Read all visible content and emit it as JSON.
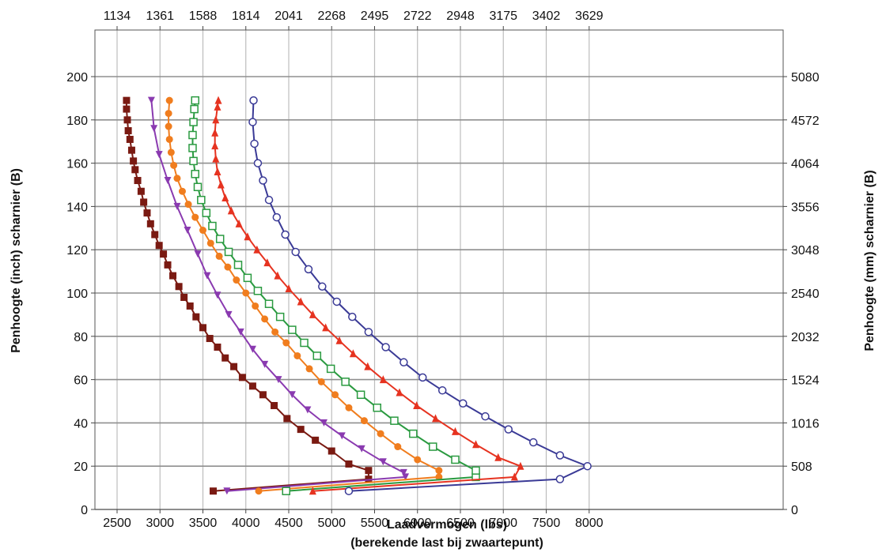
{
  "chart_data": {
    "type": "line",
    "title": "",
    "xlabel": "Laadvermogen (lbs)",
    "xlabel_sub": "(berekende last bij zwaartepunt)",
    "ylabel": "Penhoogte (inch) scharnier (B)",
    "ylabel_right": "Penhoogte (mm) scharnier (B)",
    "xlim": [
      2500,
      8250
    ],
    "ylim": [
      0,
      210
    ],
    "grid": true,
    "legend": "none",
    "x_ticks": [
      2500,
      3000,
      3500,
      4000,
      4500,
      5000,
      5500,
      6000,
      6500,
      7000,
      7500,
      8000
    ],
    "y_ticks": [
      0,
      20,
      40,
      60,
      80,
      100,
      120,
      140,
      160,
      180,
      200
    ],
    "top_ticks": [
      {
        "value": 2500,
        "label": "1134"
      },
      {
        "value": 3000,
        "label": "1361"
      },
      {
        "value": 3500,
        "label": "1588"
      },
      {
        "value": 4000,
        "label": "1814"
      },
      {
        "value": 4500,
        "label": "2041"
      },
      {
        "value": 5000,
        "label": "2268"
      },
      {
        "value": 5500,
        "label": "2495"
      },
      {
        "value": 6000,
        "label": "2722"
      },
      {
        "value": 6500,
        "label": "2948"
      },
      {
        "value": 7000,
        "label": "3175"
      },
      {
        "value": 7500,
        "label": "3402"
      },
      {
        "value": 8000,
        "label": "3629"
      }
    ],
    "right_ticks": [
      {
        "value": 0,
        "label": "0"
      },
      {
        "value": 20,
        "label": "508"
      },
      {
        "value": 40,
        "label": "1016"
      },
      {
        "value": 60,
        "label": "1524"
      },
      {
        "value": 80,
        "label": "2032"
      },
      {
        "value": 100,
        "label": "2540"
      },
      {
        "value": 120,
        "label": "3048"
      },
      {
        "value": 140,
        "label": "3556"
      },
      {
        "value": 160,
        "label": "4064"
      },
      {
        "value": 180,
        "label": "4572"
      },
      {
        "value": 200,
        "label": "5080"
      }
    ],
    "series": [
      {
        "color": "#7a1a12",
        "marker": "square",
        "points": [
          [
            3620,
            8.5
          ],
          [
            5430,
            14
          ],
          [
            5430,
            18
          ],
          [
            5200,
            21
          ],
          [
            5000,
            27
          ],
          [
            4810,
            32
          ],
          [
            4640,
            37
          ],
          [
            4480,
            42
          ],
          [
            4330,
            48
          ],
          [
            4200,
            53
          ],
          [
            4080,
            57
          ],
          [
            3960,
            61
          ],
          [
            3860,
            66
          ],
          [
            3760,
            70
          ],
          [
            3670,
            75
          ],
          [
            3580,
            79
          ],
          [
            3500,
            84
          ],
          [
            3420,
            89
          ],
          [
            3350,
            94
          ],
          [
            3280,
            98
          ],
          [
            3220,
            103
          ],
          [
            3150,
            108
          ],
          [
            3090,
            113
          ],
          [
            3040,
            118
          ],
          [
            2990,
            122
          ],
          [
            2940,
            127
          ],
          [
            2890,
            132
          ],
          [
            2850,
            137
          ],
          [
            2810,
            142
          ],
          [
            2780,
            147
          ],
          [
            2740,
            152
          ],
          [
            2710,
            157
          ],
          [
            2690,
            161
          ],
          [
            2670,
            166
          ],
          [
            2650,
            171
          ],
          [
            2630,
            175
          ],
          [
            2620,
            180
          ],
          [
            2610,
            185
          ],
          [
            2610,
            189
          ]
        ]
      },
      {
        "color": "#8a3ab0",
        "marker": "tri-down",
        "points": [
          [
            3780,
            8.5
          ],
          [
            5860,
            15
          ],
          [
            5840,
            17
          ],
          [
            5600,
            22
          ],
          [
            5350,
            28
          ],
          [
            5120,
            34
          ],
          [
            4910,
            40
          ],
          [
            4720,
            46
          ],
          [
            4540,
            53
          ],
          [
            4380,
            60
          ],
          [
            4220,
            67
          ],
          [
            4080,
            74
          ],
          [
            3940,
            82
          ],
          [
            3800,
            90
          ],
          [
            3670,
            99
          ],
          [
            3550,
            108
          ],
          [
            3440,
            118
          ],
          [
            3320,
            129
          ],
          [
            3200,
            140
          ],
          [
            3090,
            152
          ],
          [
            2990,
            164
          ],
          [
            2930,
            176
          ],
          [
            2900,
            189
          ]
        ]
      },
      {
        "color": "#f07d1e",
        "marker": "circle-filled",
        "points": [
          [
            4150,
            8.5
          ],
          [
            6250,
            15
          ],
          [
            6250,
            18
          ],
          [
            6000,
            23
          ],
          [
            5770,
            29
          ],
          [
            5570,
            35
          ],
          [
            5380,
            41
          ],
          [
            5200,
            47
          ],
          [
            5040,
            53
          ],
          [
            4880,
            59
          ],
          [
            4740,
            65
          ],
          [
            4600,
            71
          ],
          [
            4470,
            77
          ],
          [
            4340,
            82
          ],
          [
            4220,
            88
          ],
          [
            4110,
            94
          ],
          [
            4000,
            100
          ],
          [
            3890,
            106
          ],
          [
            3790,
            112
          ],
          [
            3690,
            117
          ],
          [
            3590,
            123
          ],
          [
            3500,
            129
          ],
          [
            3410,
            135
          ],
          [
            3330,
            141
          ],
          [
            3260,
            147
          ],
          [
            3200,
            153
          ],
          [
            3160,
            159
          ],
          [
            3130,
            165
          ],
          [
            3110,
            171
          ],
          [
            3100,
            177
          ],
          [
            3100,
            183
          ],
          [
            3110,
            189
          ]
        ]
      },
      {
        "color": "#2a9a40",
        "marker": "square-open",
        "points": [
          [
            4470,
            8.5
          ],
          [
            6680,
            15
          ],
          [
            6680,
            18
          ],
          [
            6440,
            23
          ],
          [
            6180,
            29
          ],
          [
            5950,
            35
          ],
          [
            5730,
            41
          ],
          [
            5530,
            47
          ],
          [
            5340,
            53
          ],
          [
            5160,
            59
          ],
          [
            4990,
            65
          ],
          [
            4830,
            71
          ],
          [
            4680,
            77
          ],
          [
            4540,
            83
          ],
          [
            4400,
            89
          ],
          [
            4270,
            95
          ],
          [
            4140,
            101
          ],
          [
            4020,
            107
          ],
          [
            3910,
            113
          ],
          [
            3800,
            119
          ],
          [
            3700,
            125
          ],
          [
            3610,
            131
          ],
          [
            3540,
            137
          ],
          [
            3480,
            143
          ],
          [
            3440,
            149
          ],
          [
            3410,
            155
          ],
          [
            3390,
            161
          ],
          [
            3380,
            167
          ],
          [
            3380,
            173
          ],
          [
            3390,
            179
          ],
          [
            3400,
            185
          ],
          [
            3410,
            189
          ]
        ]
      },
      {
        "color": "#e63320",
        "marker": "triangle",
        "points": [
          [
            4780,
            8.5
          ],
          [
            7130,
            15
          ],
          [
            7200,
            20
          ],
          [
            6940,
            24
          ],
          [
            6680,
            30
          ],
          [
            6440,
            36
          ],
          [
            6210,
            42
          ],
          [
            5990,
            48
          ],
          [
            5790,
            54
          ],
          [
            5600,
            60
          ],
          [
            5420,
            66
          ],
          [
            5250,
            72
          ],
          [
            5090,
            78
          ],
          [
            4930,
            84
          ],
          [
            4780,
            90
          ],
          [
            4640,
            96
          ],
          [
            4500,
            102
          ],
          [
            4370,
            108
          ],
          [
            4250,
            114
          ],
          [
            4130,
            120
          ],
          [
            4020,
            126
          ],
          [
            3920,
            132
          ],
          [
            3830,
            138
          ],
          [
            3760,
            144
          ],
          [
            3710,
            150
          ],
          [
            3670,
            156
          ],
          [
            3650,
            162
          ],
          [
            3640,
            168
          ],
          [
            3640,
            174
          ],
          [
            3650,
            180
          ],
          [
            3670,
            186
          ],
          [
            3680,
            189
          ]
        ]
      },
      {
        "color": "#3a3a96",
        "marker": "circle-open",
        "points": [
          [
            5200,
            8.5
          ],
          [
            7660,
            14
          ],
          [
            7980,
            20
          ],
          [
            7660,
            25
          ],
          [
            7350,
            31
          ],
          [
            7060,
            37
          ],
          [
            6790,
            43
          ],
          [
            6530,
            49
          ],
          [
            6290,
            55
          ],
          [
            6060,
            61
          ],
          [
            5840,
            68
          ],
          [
            5630,
            75
          ],
          [
            5430,
            82
          ],
          [
            5240,
            89
          ],
          [
            5060,
            96
          ],
          [
            4890,
            103
          ],
          [
            4730,
            111
          ],
          [
            4580,
            119
          ],
          [
            4460,
            127
          ],
          [
            4360,
            135
          ],
          [
            4270,
            143
          ],
          [
            4200,
            152
          ],
          [
            4140,
            160
          ],
          [
            4100,
            169
          ],
          [
            4080,
            179
          ],
          [
            4090,
            189
          ]
        ]
      }
    ]
  }
}
